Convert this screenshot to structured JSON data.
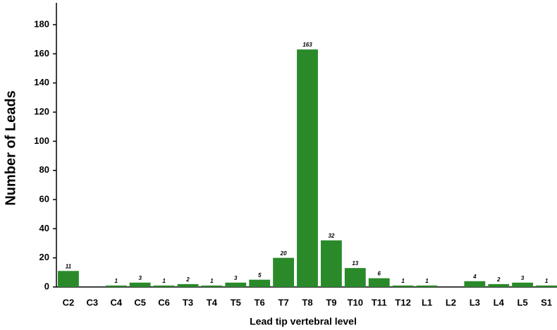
{
  "chart_data": {
    "type": "bar",
    "x_label": "Lead tip vertebral level",
    "y_label": "Number of Leads",
    "categories": [
      "C2",
      "C3",
      "C4",
      "C5",
      "C6",
      "T3",
      "T4",
      "T5",
      "T6",
      "T7",
      "T8",
      "T9",
      "T10",
      "T11",
      "T12",
      "L1",
      "L2",
      "L3",
      "L4",
      "L5",
      "S1"
    ],
    "values": [
      11,
      0,
      1,
      3,
      1,
      2,
      1,
      3,
      5,
      20,
      163,
      32,
      13,
      6,
      1,
      1,
      0,
      4,
      2,
      3,
      1
    ],
    "color": "#2a8a2a",
    "ylim": [
      0,
      195
    ],
    "yticks": [
      0,
      20,
      40,
      60,
      80,
      100,
      120,
      140,
      160,
      180
    ]
  }
}
